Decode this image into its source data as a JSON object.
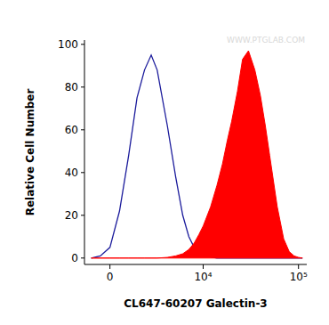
{
  "chart_data": {
    "type": "area",
    "x_label": "CL647-60207 Galectin-3",
    "y_label": "Relative Cell Number",
    "annotations": [
      "WWW.PTGLAB.COM"
    ],
    "x": [
      -1000,
      -500,
      0,
      500,
      1000,
      1500,
      2000,
      2500,
      3000,
      4000,
      5000,
      6000,
      7000,
      8000,
      9000,
      10000,
      12000,
      14000,
      16000,
      18000,
      20000,
      23000,
      26000,
      30000,
      35000,
      40000,
      45000,
      50000,
      60000,
      70000,
      80000,
      90000,
      100000,
      110000
    ],
    "series": [
      {
        "type": "line",
        "color": "#1c1c9c",
        "line_style": "solid",
        "values": [
          0,
          1,
          5,
          22,
          48,
          75,
          88,
          95,
          88,
          62,
          38,
          20,
          10,
          5,
          3,
          1.5,
          0.5,
          0,
          0,
          0,
          0,
          0,
          0,
          0,
          0,
          0,
          0,
          0,
          0,
          0,
          0,
          0,
          0,
          0
        ]
      },
      {
        "type": "area",
        "color": "#ff0000",
        "values": [
          0,
          0,
          0,
          0,
          0,
          0,
          0,
          0,
          0,
          0.3,
          1,
          2,
          4,
          7,
          11,
          15,
          24,
          34,
          44,
          55,
          64,
          78,
          93,
          97,
          88,
          76,
          62,
          48,
          24,
          9,
          3,
          1,
          0.3,
          0
        ]
      }
    ],
    "xlim": [
      -1400,
      122000
    ],
    "xticks": [
      {
        "value": 0,
        "label": "0"
      },
      {
        "value": 10000,
        "label": "10⁴"
      },
      {
        "value": 100000,
        "label": "10⁵"
      }
    ],
    "log": "x",
    "ylim": [
      -3,
      102
    ],
    "yticks": [
      0,
      20,
      40,
      60,
      80,
      100
    ],
    "grid": false
  }
}
